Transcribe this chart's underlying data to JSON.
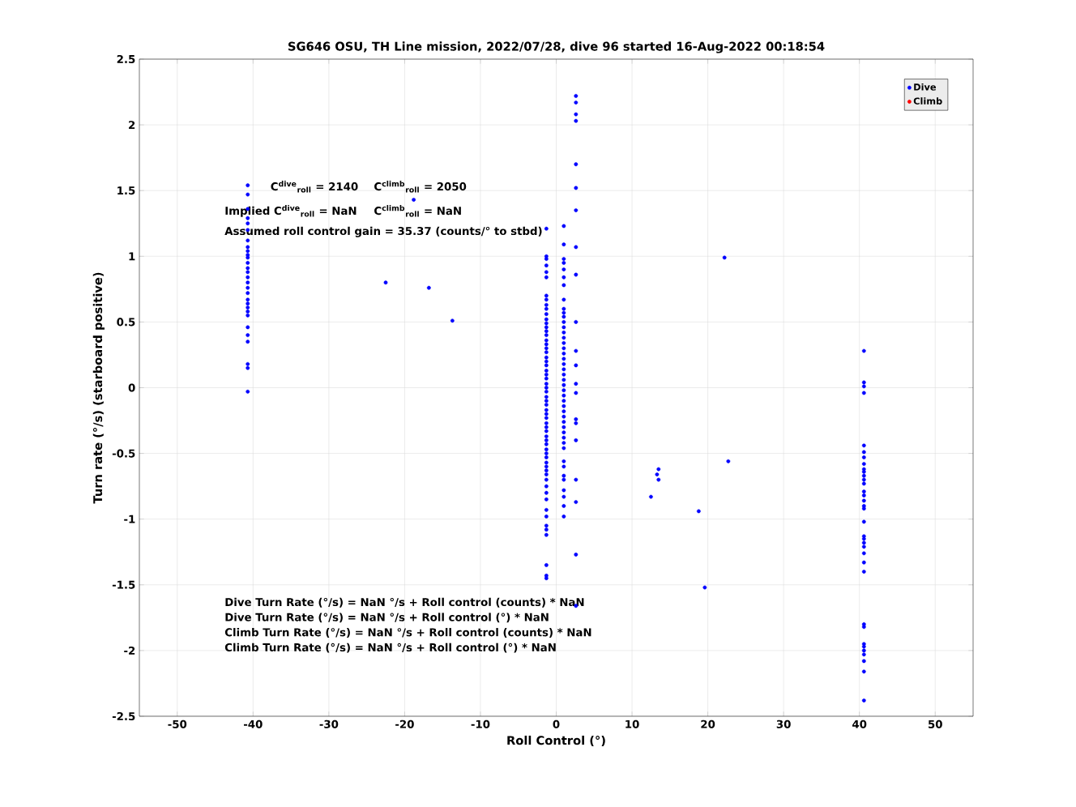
{
  "chart_data": {
    "type": "scatter",
    "title": "SG646 OSU, TH Line mission, 2022/07/28, dive 96 started 16-Aug-2022 00:18:54",
    "xlabel": "Roll Control (°)",
    "ylabel": "Turn rate (°/s) (starboard positive)",
    "annotations": [
      "C$^{dive}$$_{roll}$ = 2140",
      "C$^{climb}$$_{roll}$ = 2050",
      "Implied C$^{dive}$$_{roll}$ = NaN",
      "C$^{climb}$$_{roll}$ = NaN",
      "Assumed roll control gain = 35.37 (counts/° to stbd)",
      "Dive Turn Rate (°/s) = NaN °/s + Roll control (counts) * NaN",
      "Dive Turn Rate (°/s) = NaN °/s + Roll control (°) * NaN",
      "Climb Turn Rate (°/s) = NaN °/s + Roll control (counts) * NaN",
      "Climb Turn Rate (°/s) = NaN °/s + Roll control (°) * NaN"
    ],
    "series": [
      {
        "name": "Dive",
        "color": "#0000ff",
        "x": [
          -40.7,
          -40.7,
          -40.7,
          -40.7,
          -40.7,
          -40.7,
          -40.7,
          -40.7,
          -40.7,
          -40.7,
          -40.7,
          -40.7,
          -40.7,
          -40.7,
          -40.7,
          -40.7,
          -40.7,
          -40.7,
          -40.7,
          -40.7,
          -40.7,
          -40.7,
          -40.7,
          -40.7,
          -40.7,
          -40.7,
          -40.7,
          -40.7,
          -40.7,
          -1.3,
          -1.3,
          -1.3,
          -1.3,
          -1.3,
          -1.3,
          -1.3,
          -1.3,
          -1.3,
          -1.3,
          -1.3,
          -1.3,
          -1.3,
          -1.3,
          -1.3,
          -1.3,
          -1.3,
          -1.3,
          -1.3,
          -1.3,
          -1.3,
          -1.3,
          -1.3,
          -1.3,
          -1.3,
          -1.3,
          -1.3,
          -1.3,
          -1.3,
          -1.3,
          -1.3,
          -1.3,
          -1.3,
          -1.3,
          -1.3,
          -1.3,
          -1.3,
          -1.3,
          -1.3,
          -1.3,
          -1.3,
          -1.3,
          -1.3,
          -1.3,
          -1.3,
          -1.3,
          -1.3,
          -1.3,
          -1.3,
          -1.3,
          -1.3,
          -1.3,
          -1.3,
          -1.3,
          -1.3,
          -1.3,
          -1.3,
          -1.3,
          -1.3,
          -1.3,
          1.0,
          1.0,
          1.0,
          1.0,
          1.0,
          1.0,
          1.0,
          1.0,
          1.0,
          1.0,
          1.0,
          1.0,
          1.0,
          1.0,
          1.0,
          1.0,
          1.0,
          1.0,
          1.0,
          1.0,
          1.0,
          1.0,
          1.0,
          1.0,
          1.0,
          1.0,
          1.0,
          1.0,
          1.0,
          1.0,
          1.0,
          1.0,
          1.0,
          1.0,
          1.0,
          1.0,
          1.0,
          1.0,
          1.0,
          1.0,
          1.0,
          1.0,
          1.0,
          1.0,
          2.6,
          2.6,
          2.6,
          2.6,
          2.6,
          2.6,
          2.6,
          2.6,
          2.6,
          2.6,
          2.6,
          2.6,
          2.6,
          2.6,
          2.6,
          2.6,
          2.6,
          2.6,
          2.6,
          2.6,
          2.6,
          -22.5,
          -16.8,
          -13.7,
          -18.8,
          12.5,
          13.5,
          13.3,
          13.5,
          18.8,
          19.6,
          22.2,
          22.7,
          40.6,
          40.6,
          40.6,
          40.6,
          40.6,
          40.6,
          40.6,
          40.6,
          40.6,
          40.6,
          40.6,
          40.6,
          40.6,
          40.6,
          40.6,
          40.6,
          40.6,
          40.6,
          40.6,
          40.6,
          40.6,
          40.6,
          40.6,
          40.6,
          40.6,
          40.6,
          40.6,
          40.6,
          40.6,
          40.6,
          40.6,
          40.6,
          40.6,
          40.6,
          40.6
        ],
        "values": [
          1.54,
          1.47,
          1.36,
          1.29,
          1.25,
          1.2,
          1.12,
          1.07,
          1.04,
          1.01,
          0.99,
          0.95,
          0.91,
          0.88,
          0.84,
          0.8,
          0.76,
          0.72,
          0.67,
          0.64,
          0.61,
          0.58,
          0.55,
          0.46,
          0.4,
          0.35,
          0.18,
          0.15,
          -0.03,
          1.21,
          1.0,
          0.98,
          0.93,
          0.88,
          0.84,
          0.7,
          0.67,
          0.63,
          0.6,
          0.56,
          0.52,
          0.49,
          0.46,
          0.43,
          0.4,
          0.36,
          0.33,
          0.3,
          0.27,
          0.23,
          0.2,
          0.17,
          0.13,
          0.1,
          0.07,
          0.03,
          0.0,
          -0.03,
          -0.07,
          -0.1,
          -0.13,
          -0.17,
          -0.2,
          -0.23,
          -0.27,
          -0.3,
          -0.33,
          -0.37,
          -0.4,
          -0.43,
          -0.47,
          -0.5,
          -0.53,
          -0.57,
          -0.6,
          -0.63,
          -0.66,
          -0.7,
          -0.75,
          -0.8,
          -0.85,
          -0.93,
          -0.98,
          -1.05,
          -1.08,
          -1.12,
          -1.35,
          -1.43,
          -1.45,
          1.23,
          1.09,
          0.98,
          0.95,
          0.9,
          0.84,
          0.78,
          0.67,
          0.6,
          0.57,
          0.54,
          0.5,
          0.46,
          0.42,
          0.38,
          0.34,
          0.3,
          0.26,
          0.22,
          0.18,
          0.14,
          0.1,
          0.06,
          0.02,
          -0.02,
          -0.06,
          -0.1,
          -0.14,
          -0.18,
          -0.22,
          -0.26,
          -0.3,
          -0.34,
          -0.38,
          -0.42,
          -0.46,
          -0.56,
          -0.6,
          -0.67,
          -0.7,
          -0.78,
          -0.83,
          -0.9,
          -0.98,
          2.22,
          2.17,
          2.08,
          2.03,
          1.7,
          1.52,
          1.35,
          1.07,
          0.86,
          0.5,
          0.28,
          0.17,
          0.03,
          -0.04,
          -0.24,
          -0.27,
          -0.4,
          -0.7,
          -0.87,
          -1.27,
          -1.66,
          0.8,
          0.76,
          0.51,
          1.43,
          -0.83,
          -0.62,
          -0.66,
          -0.7,
          -0.94,
          -1.52,
          0.99,
          -0.56,
          0.28,
          0.04,
          0.01,
          -0.04,
          -0.44,
          -0.49,
          -0.53,
          -0.58,
          -0.62,
          -0.64,
          -0.67,
          -0.7,
          -0.73,
          -0.79,
          -0.82,
          -0.86,
          -0.9,
          -0.92,
          -1.02,
          -1.13,
          -1.15,
          -1.18,
          -1.21,
          -1.26,
          -1.33,
          -1.4,
          -1.8,
          -1.82,
          -1.95,
          -1.97,
          -2.0,
          -2.03,
          -2.08,
          -2.16,
          -2.38
        ]
      },
      {
        "name": "Climb",
        "color": "#ff0000"
      }
    ],
    "xlim": [
      -55,
      55
    ],
    "ylim": [
      -2.5,
      2.5
    ],
    "xticks": [
      -50,
      -40,
      -30,
      -20,
      -10,
      0,
      10,
      20,
      30,
      40,
      50
    ],
    "yticks": [
      -2.5,
      -2,
      -1.5,
      -1,
      -0.5,
      0,
      0.5,
      1,
      1.5,
      2,
      2.5
    ],
    "grid": true,
    "legend": "top right",
    "marker": "circle"
  }
}
